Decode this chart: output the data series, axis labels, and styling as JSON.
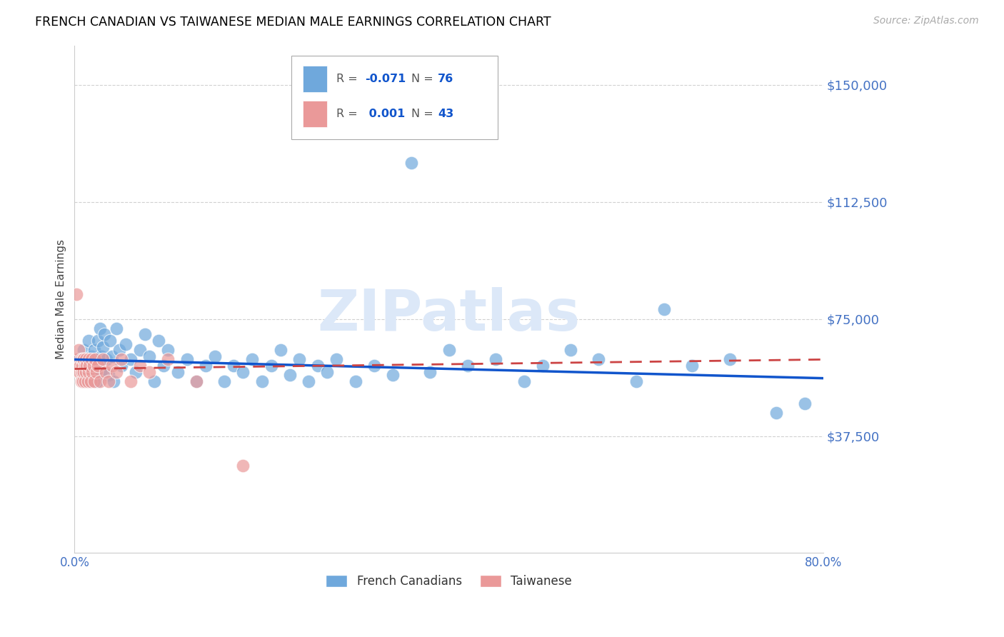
{
  "title": "FRENCH CANADIAN VS TAIWANESE MEDIAN MALE EARNINGS CORRELATION CHART",
  "source": "Source: ZipAtlas.com",
  "ylabel": "Median Male Earnings",
  "xlabel_ticks": [
    "0.0%",
    "",
    "",
    "",
    "",
    "",
    "",
    "",
    "80.0%"
  ],
  "ytick_labels": [
    "$37,500",
    "$75,000",
    "$112,500",
    "$150,000"
  ],
  "ytick_values": [
    37500,
    75000,
    112500,
    150000
  ],
  "xlim": [
    0.0,
    0.8
  ],
  "ylim": [
    0,
    162500
  ],
  "legend_blue_label": "French Canadians",
  "legend_pink_label": "Taiwanese",
  "blue_color": "#6fa8dc",
  "pink_color": "#ea9999",
  "blue_line_color": "#1155cc",
  "pink_line_color": "#cc4444",
  "title_color": "#000000",
  "source_color": "#aaaaaa",
  "yaxis_label_color": "#444444",
  "ytick_color": "#4472c4",
  "xtick_color": "#4472c4",
  "watermark": "ZIPatlas",
  "watermark_color": "#dce8f8",
  "blue_points_x": [
    0.005,
    0.008,
    0.01,
    0.012,
    0.014,
    0.015,
    0.016,
    0.017,
    0.018,
    0.019,
    0.02,
    0.021,
    0.022,
    0.023,
    0.024,
    0.025,
    0.026,
    0.027,
    0.028,
    0.029,
    0.03,
    0.032,
    0.034,
    0.036,
    0.038,
    0.04,
    0.042,
    0.045,
    0.048,
    0.05,
    0.055,
    0.06,
    0.065,
    0.07,
    0.075,
    0.08,
    0.085,
    0.09,
    0.095,
    0.1,
    0.11,
    0.12,
    0.13,
    0.14,
    0.15,
    0.16,
    0.17,
    0.18,
    0.19,
    0.2,
    0.21,
    0.22,
    0.23,
    0.24,
    0.25,
    0.26,
    0.27,
    0.28,
    0.3,
    0.32,
    0.34,
    0.36,
    0.38,
    0.4,
    0.42,
    0.45,
    0.48,
    0.5,
    0.53,
    0.56,
    0.6,
    0.63,
    0.66,
    0.7,
    0.75,
    0.78
  ],
  "blue_points_y": [
    62000,
    58000,
    65000,
    60000,
    55000,
    68000,
    62000,
    57000,
    63000,
    58000,
    60000,
    65000,
    57000,
    62000,
    55000,
    68000,
    60000,
    72000,
    58000,
    63000,
    66000,
    70000,
    62000,
    57000,
    68000,
    63000,
    55000,
    72000,
    65000,
    60000,
    67000,
    62000,
    58000,
    65000,
    70000,
    63000,
    55000,
    68000,
    60000,
    65000,
    58000,
    62000,
    55000,
    60000,
    63000,
    55000,
    60000,
    58000,
    62000,
    55000,
    60000,
    65000,
    57000,
    62000,
    55000,
    60000,
    58000,
    62000,
    55000,
    60000,
    57000,
    125000,
    58000,
    65000,
    60000,
    62000,
    55000,
    60000,
    65000,
    62000,
    55000,
    78000,
    60000,
    62000,
    45000,
    48000
  ],
  "pink_points_x": [
    0.002,
    0.003,
    0.004,
    0.005,
    0.006,
    0.007,
    0.007,
    0.008,
    0.008,
    0.009,
    0.009,
    0.01,
    0.01,
    0.011,
    0.011,
    0.012,
    0.012,
    0.013,
    0.014,
    0.015,
    0.015,
    0.016,
    0.017,
    0.018,
    0.019,
    0.02,
    0.021,
    0.022,
    0.023,
    0.025,
    0.027,
    0.03,
    0.033,
    0.036,
    0.04,
    0.045,
    0.05,
    0.06,
    0.07,
    0.08,
    0.1,
    0.13,
    0.18
  ],
  "pink_points_y": [
    83000,
    62000,
    65000,
    58000,
    60000,
    62000,
    55000,
    60000,
    58000,
    62000,
    55000,
    62000,
    58000,
    60000,
    55000,
    62000,
    58000,
    60000,
    55000,
    62000,
    58000,
    60000,
    55000,
    62000,
    58000,
    60000,
    55000,
    62000,
    58000,
    60000,
    55000,
    62000,
    58000,
    55000,
    60000,
    58000,
    62000,
    55000,
    60000,
    58000,
    62000,
    55000,
    28000
  ],
  "blue_trendline_x": [
    0.0,
    0.8
  ],
  "blue_trendline_y": [
    62000,
    56000
  ],
  "pink_trendline_x": [
    0.0,
    0.8
  ],
  "pink_trendline_y": [
    59000,
    62000
  ]
}
